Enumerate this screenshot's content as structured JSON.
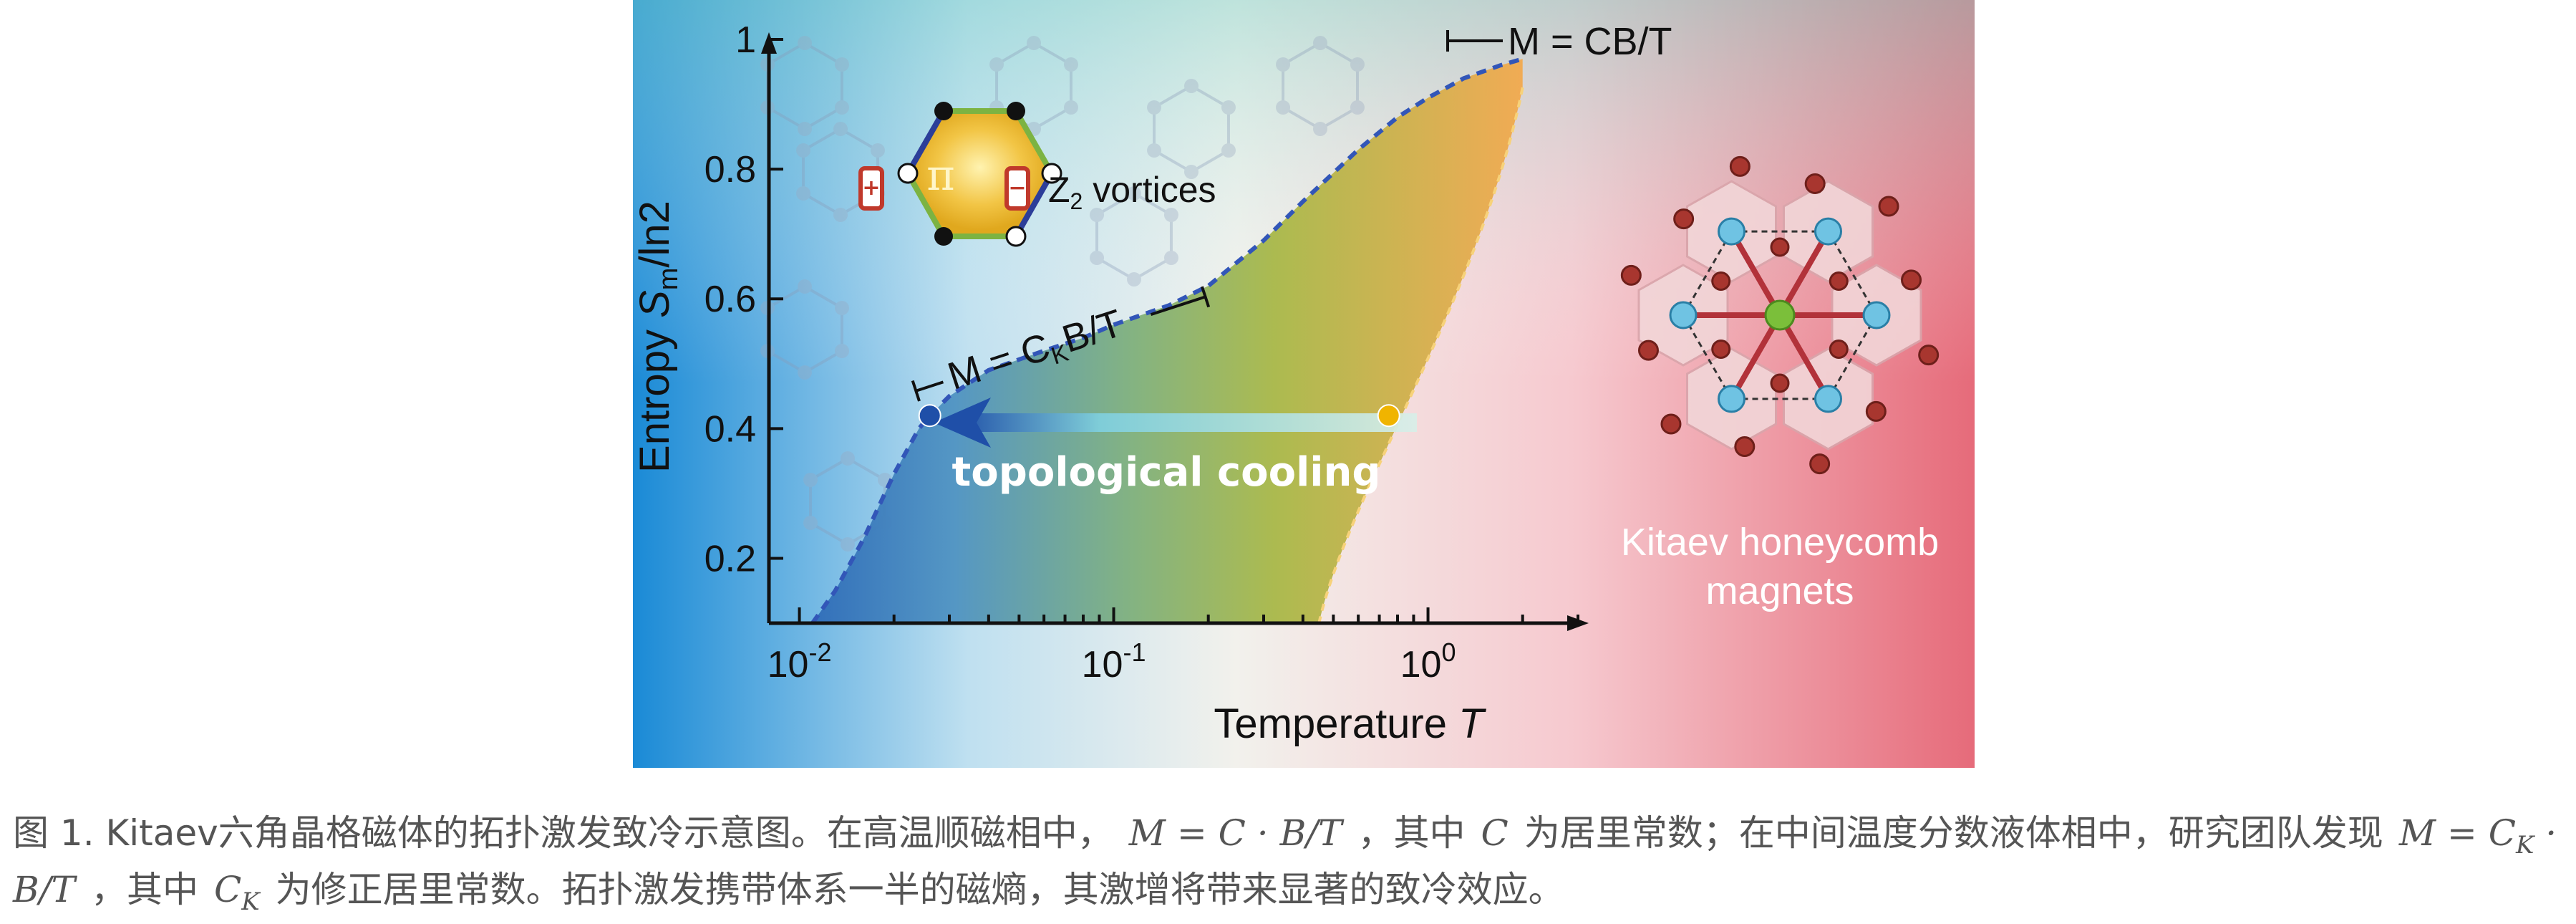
{
  "figure": {
    "chart_data": {
      "type": "area",
      "xlabel_text": "Temperature",
      "xlabel_var": "T",
      "ylabel_text": "Entropy",
      "ylabel_var": "S",
      "ylabel_sub": "m",
      "ylabel_suffix": "/ln2",
      "x_scale": "log",
      "xlim": [
        0.008,
        3
      ],
      "ylim": [
        0.1,
        1.0
      ],
      "x_ticks": [
        {
          "value": 0.01,
          "base": "10",
          "exp": "-2"
        },
        {
          "value": 0.1,
          "base": "10",
          "exp": "-1"
        },
        {
          "value": 1,
          "base": "10",
          "exp": "0"
        }
      ],
      "y_ticks": [
        {
          "value": 0.2,
          "label": "0.2"
        },
        {
          "value": 0.4,
          "label": "0.4"
        },
        {
          "value": 0.6,
          "label": "0.6"
        },
        {
          "value": 0.8,
          "label": "0.8"
        },
        {
          "value": 1.0,
          "label": "1"
        }
      ],
      "series": [
        {
          "x": [
            0.011,
            0.013,
            0.016,
            0.02,
            0.024,
            0.026,
            0.03,
            0.04,
            0.06,
            0.08,
            0.1,
            0.15,
            0.2,
            0.3,
            0.4,
            0.6,
            0.8,
            1.0,
            1.3,
            1.7,
            2.0
          ],
          "y": [
            0.1,
            0.15,
            0.23,
            0.33,
            0.4,
            0.42,
            0.45,
            0.49,
            0.52,
            0.54,
            0.56,
            0.59,
            0.62,
            0.69,
            0.75,
            0.83,
            0.88,
            0.91,
            0.94,
            0.96,
            0.97
          ]
        }
      ],
      "points": [
        {
          "x": 0.026,
          "y": 0.42,
          "color": "#1f4fa8"
        },
        {
          "x": 0.75,
          "y": 0.42,
          "color": "#f0b400"
        }
      ],
      "annotations": {
        "cooling_label": "topological cooling",
        "top_label": "M = CB/T",
        "mid_label_prefix": "M = C",
        "mid_label_sub": "K",
        "mid_label_suffix": "B/T",
        "vortex_symbol": "π",
        "vortex_label_z": "Z",
        "vortex_label_sub": "2",
        "vortex_label_suffix": " vortices",
        "magnet_label_line1": "Kitaev honeycomb",
        "magnet_label_line2": "magnets"
      }
    }
  },
  "caption": {
    "part1": "图 1. Kitaev六角晶格磁体的拓扑激发致冷示意图。在高温顺磁相中，",
    "math1": "M = C · B/T",
    "part2": "，其中",
    "math2": "C",
    "part3": "为居里常数；在中间温度分数液体相中，研究团队发现",
    "math3_prefix": "M = C",
    "math3_sub": "K",
    "math3_suffix": " · B/T",
    "part4": "，其中",
    "math4_prefix": "C",
    "math4_sub": "K",
    "part5": "为修正居里常数。拓扑激发携带体系一半的磁熵，其激增将带来显著的致冷效应。"
  },
  "colors": {
    "bg_left": "#1a8ad6",
    "bg_mid": "#f2f2ee",
    "bg_right": "#e8707e",
    "area_blue": "#2f6cb8",
    "area_green": "#9ab74a",
    "area_orange": "#eea646",
    "curve": "#3256b8"
  }
}
